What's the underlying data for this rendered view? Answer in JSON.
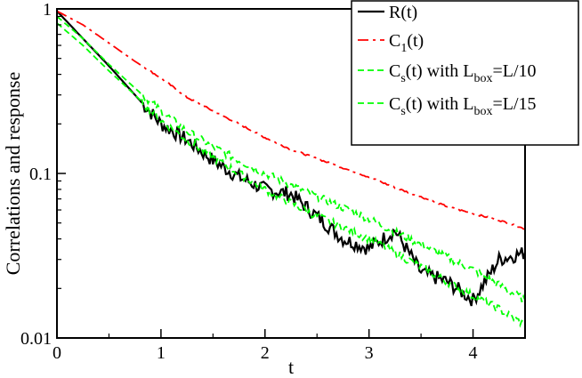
{
  "chart_data": {
    "type": "line",
    "title": "",
    "xlabel": "t",
    "ylabel": "Correlations and response",
    "xlim": [
      0,
      4.5
    ],
    "ylim": [
      0.01,
      1
    ],
    "yscale": "log",
    "grid": false,
    "legend_position": "top-right",
    "x_ticks": [
      0,
      1,
      2,
      3,
      4
    ],
    "x_tick_labels": [
      "0",
      "1",
      "2",
      "3",
      "4"
    ],
    "y_ticks": [
      0.01,
      0.1,
      1
    ],
    "y_tick_labels": [
      "0.01",
      "0.1",
      "1"
    ],
    "series": [
      {
        "name": "R(t)",
        "legend_main": "R(t)",
        "legend_sub": "",
        "legend_rest": "",
        "color": "#000000",
        "style": "solid",
        "noise": 0.09,
        "x": [
          0,
          0.25,
          0.5,
          0.75,
          1.0,
          1.25,
          1.5,
          1.75,
          2.0,
          2.25,
          2.5,
          2.75,
          3.0,
          3.25,
          3.5,
          3.75,
          4.0,
          4.25,
          4.5
        ],
        "y": [
          0.97,
          0.66,
          0.45,
          0.3,
          0.2,
          0.16,
          0.12,
          0.095,
          0.08,
          0.075,
          0.055,
          0.04,
          0.035,
          0.045,
          0.025,
          0.022,
          0.017,
          0.03,
          0.033
        ]
      },
      {
        "name": "C_1(t)",
        "legend_main": "C",
        "legend_sub": "1",
        "legend_rest": "(t)",
        "color": "#ff0000",
        "style": "dashdot",
        "noise": 0.01,
        "x": [
          0,
          0.25,
          0.5,
          0.75,
          1.0,
          1.25,
          1.5,
          1.75,
          2.0,
          2.25,
          2.5,
          2.75,
          3.0,
          3.25,
          3.5,
          3.75,
          4.0,
          4.25,
          4.5
        ],
        "y": [
          0.97,
          0.8,
          0.62,
          0.48,
          0.38,
          0.29,
          0.24,
          0.2,
          0.165,
          0.14,
          0.123,
          0.108,
          0.095,
          0.082,
          0.072,
          0.063,
          0.057,
          0.052,
          0.046
        ]
      },
      {
        "name": "C_s(t) with L_box=L/10",
        "legend_main": "C",
        "legend_sub": "s",
        "legend_rest": "(t) with L",
        "legend_sub2": "box",
        "legend_tail": "=L/10",
        "color": "#00ff00",
        "style": "dashed",
        "noise": 0.05,
        "x": [
          0,
          0.25,
          0.5,
          0.75,
          1.0,
          1.25,
          1.5,
          1.75,
          2.0,
          2.25,
          2.5,
          2.75,
          3.0,
          3.25,
          3.5,
          3.75,
          4.0,
          4.25,
          4.5
        ],
        "y": [
          0.9,
          0.66,
          0.46,
          0.33,
          0.24,
          0.18,
          0.145,
          0.12,
          0.1,
          0.085,
          0.072,
          0.062,
          0.053,
          0.044,
          0.037,
          0.031,
          0.026,
          0.021,
          0.017
        ]
      },
      {
        "name": "C_s(t) with L_box=L/15",
        "legend_main": "C",
        "legend_sub": "s",
        "legend_rest": "(t) with L",
        "legend_sub2": "box",
        "legend_tail": "=L/15",
        "color": "#00ff00",
        "style": "dashed",
        "noise": 0.05,
        "x": [
          0,
          0.25,
          0.5,
          0.75,
          1.0,
          1.25,
          1.5,
          1.75,
          2.0,
          2.25,
          2.5,
          2.75,
          3.0,
          3.25,
          3.5,
          3.75,
          4.0,
          4.25,
          4.5
        ],
        "y": [
          0.82,
          0.6,
          0.42,
          0.3,
          0.21,
          0.16,
          0.125,
          0.1,
          0.08,
          0.066,
          0.055,
          0.047,
          0.04,
          0.033,
          0.027,
          0.022,
          0.018,
          0.015,
          0.012
        ]
      }
    ]
  }
}
